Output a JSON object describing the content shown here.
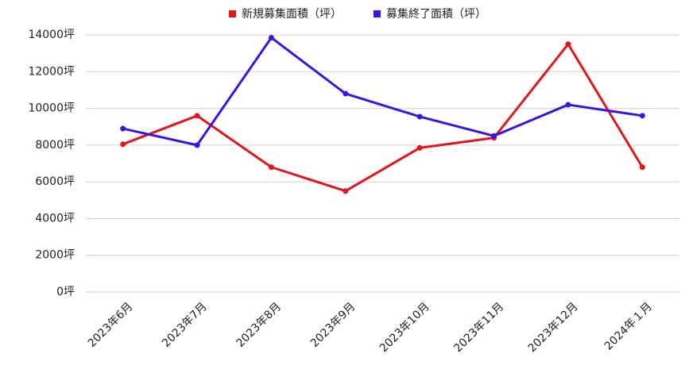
{
  "chart_data": {
    "type": "line",
    "categories": [
      "2023年6月",
      "2023年7月",
      "2023年8月",
      "2023年9月",
      "2023年10月",
      "2023年11月",
      "2023年12月",
      "2024年１月"
    ],
    "series": [
      {
        "name": "新規募集面積（坪）",
        "color": "#e0161b",
        "values": [
          8050,
          9600,
          6800,
          5500,
          7850,
          8400,
          13500,
          6800
        ]
      },
      {
        "name": "募集終了面積（坪）",
        "color": "#3a14e0",
        "values": [
          8900,
          8000,
          13850,
          10800,
          9550,
          8500,
          10200,
          9600
        ]
      }
    ],
    "ylim": [
      0,
      14000
    ],
    "yticks": [
      {
        "value": 0,
        "label": "0坪"
      },
      {
        "value": 2000,
        "label": "2000坪"
      },
      {
        "value": 4000,
        "label": "4000坪"
      },
      {
        "value": 6000,
        "label": "6000坪"
      },
      {
        "value": 8000,
        "label": "8000坪"
      },
      {
        "value": 10000,
        "label": "10000坪"
      },
      {
        "value": 12000,
        "label": "12000坪"
      },
      {
        "value": 14000,
        "label": "14000坪"
      }
    ],
    "grid": true
  }
}
